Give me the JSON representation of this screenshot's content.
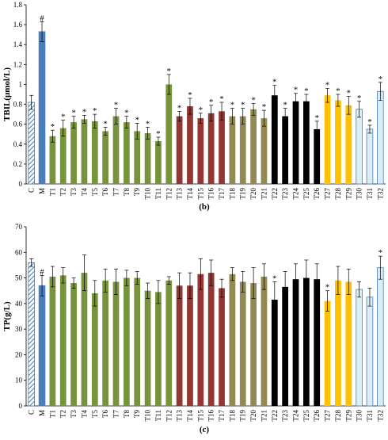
{
  "categories": [
    "C",
    "M",
    "T1",
    "T2",
    "T3",
    "T4",
    "T5",
    "T6",
    "T7",
    "T8",
    "T9",
    "T10",
    "T11",
    "T12",
    "T13",
    "T14",
    "T15",
    "T16",
    "T17",
    "T18",
    "T19",
    "T20",
    "T21",
    "T22",
    "T23",
    "T24",
    "T25",
    "T26",
    "T27",
    "T28",
    "T29",
    "T30",
    "T31",
    "T32"
  ],
  "colors": {
    "C": "hatched-blue",
    "M": "#4a7ebb",
    "T1-T12": "#77933c",
    "T13-T17": "#943634",
    "T18-T21": "#938953",
    "T22-T26": "#000000",
    "T27-T29": "#ffc000",
    "T30-T32": "#dbeef4"
  },
  "chart_data": [
    {
      "type": "bar",
      "panel_label": "(b)",
      "ylabel": "TBIL(μmol/L)",
      "ylim": [
        0,
        1.8
      ],
      "yticks": [
        "0",
        "0.2",
        "0.4",
        "0.6",
        "0.8",
        "1",
        "1.2",
        "1.4",
        "1.6",
        "1.8"
      ],
      "values": [
        0.82,
        1.53,
        0.48,
        0.56,
        0.62,
        0.65,
        0.63,
        0.53,
        0.68,
        0.62,
        0.53,
        0.51,
        0.43,
        1.0,
        0.68,
        0.78,
        0.66,
        0.71,
        0.73,
        0.68,
        0.68,
        0.75,
        0.66,
        0.89,
        0.68,
        0.83,
        0.83,
        0.55,
        0.89,
        0.84,
        0.79,
        0.75,
        0.55,
        0.93
      ],
      "errors": [
        0.07,
        0.1,
        0.06,
        0.08,
        0.06,
        0.04,
        0.07,
        0.04,
        0.08,
        0.06,
        0.08,
        0.06,
        0.04,
        0.1,
        0.05,
        0.08,
        0.05,
        0.08,
        0.09,
        0.08,
        0.08,
        0.06,
        0.08,
        0.1,
        0.08,
        0.08,
        0.07,
        0.08,
        0.07,
        0.06,
        0.09,
        0.08,
        0.04,
        0.09
      ],
      "markers": [
        "",
        "#",
        "*",
        "*",
        "*",
        "*",
        "*",
        "*",
        "*",
        "*",
        "*",
        "*",
        "*",
        "*",
        "*",
        "*",
        "*",
        "*",
        "*",
        "*",
        "*",
        "*",
        "*",
        "*",
        "*",
        "*",
        "*",
        "*",
        "*",
        "*",
        "*",
        "*",
        "*",
        "*"
      ]
    },
    {
      "type": "bar",
      "panel_label": "(c)",
      "ylabel": "TP(g/L)",
      "ylim": [
        0,
        70
      ],
      "yticks": [
        "0",
        "10",
        "20",
        "30",
        "40",
        "50",
        "60",
        "70"
      ],
      "values": [
        56,
        47,
        50.5,
        51,
        48,
        52,
        44,
        49,
        48.5,
        50,
        50,
        45,
        44.5,
        49,
        47,
        47,
        51.5,
        52,
        46,
        51.5,
        48.5,
        48,
        50.5,
        41.5,
        46.5,
        49.5,
        50,
        49.5,
        41,
        49,
        48.5,
        45.5,
        42.5,
        54
      ],
      "errors": [
        1.5,
        4,
        4,
        3,
        2,
        7,
        5,
        4.5,
        5,
        3,
        2.5,
        3,
        4.5,
        1.5,
        5,
        5,
        6,
        5,
        3.5,
        2.5,
        4,
        6,
        5,
        7,
        6,
        6,
        7,
        6,
        4,
        5.5,
        5,
        3,
        3.5,
        4.5
      ],
      "markers": [
        "",
        "#",
        "",
        "",
        "",
        "",
        "",
        "",
        "",
        "",
        "",
        "",
        "",
        "",
        "",
        "",
        "",
        "",
        "",
        "",
        "",
        "",
        "",
        "*",
        "",
        "",
        "",
        "",
        "*",
        "",
        "",
        "",
        "",
        "*"
      ]
    }
  ]
}
